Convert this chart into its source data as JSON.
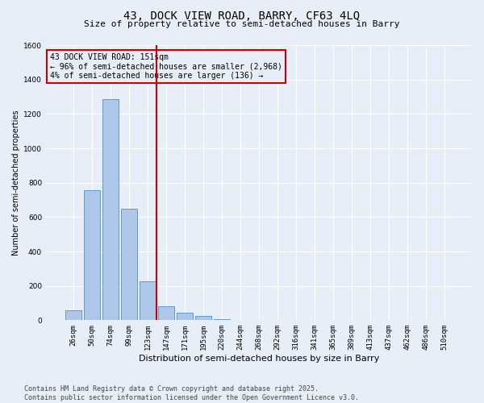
{
  "title_line1": "43, DOCK VIEW ROAD, BARRY, CF63 4LQ",
  "title_line2": "Size of property relative to semi-detached houses in Barry",
  "xlabel": "Distribution of semi-detached houses by size in Barry",
  "ylabel": "Number of semi-detached properties",
  "annotation_title": "43 DOCK VIEW ROAD: 151sqm",
  "annotation_line2": "← 96% of semi-detached houses are smaller (2,968)",
  "annotation_line3": "4% of semi-detached houses are larger (136) →",
  "footer_line1": "Contains HM Land Registry data © Crown copyright and database right 2025.",
  "footer_line2": "Contains public sector information licensed under the Open Government Licence v3.0.",
  "categories": [
    "26sqm",
    "50sqm",
    "74sqm",
    "99sqm",
    "123sqm",
    "147sqm",
    "171sqm",
    "195sqm",
    "220sqm",
    "244sqm",
    "268sqm",
    "292sqm",
    "316sqm",
    "341sqm",
    "365sqm",
    "389sqm",
    "413sqm",
    "437sqm",
    "462sqm",
    "486sqm",
    "510sqm"
  ],
  "values": [
    60,
    755,
    1285,
    648,
    228,
    80,
    43,
    25,
    8,
    0,
    0,
    0,
    0,
    0,
    0,
    0,
    0,
    0,
    0,
    0,
    0
  ],
  "bar_color": "#aec6e8",
  "bar_edge_color": "#5b9bd5",
  "vline_x": 4.5,
  "vline_color": "#cc0000",
  "annotation_box_color": "#cc0000",
  "background_color": "#e8eef7",
  "ylim": [
    0,
    1600
  ],
  "yticks": [
    0,
    200,
    400,
    600,
    800,
    1000,
    1200,
    1400,
    1600
  ],
  "grid_color": "#ffffff",
  "title_fontsize": 10,
  "subtitle_fontsize": 8,
  "xlabel_fontsize": 8,
  "ylabel_fontsize": 7,
  "tick_fontsize": 6.5,
  "annotation_fontsize": 7,
  "footer_fontsize": 6
}
